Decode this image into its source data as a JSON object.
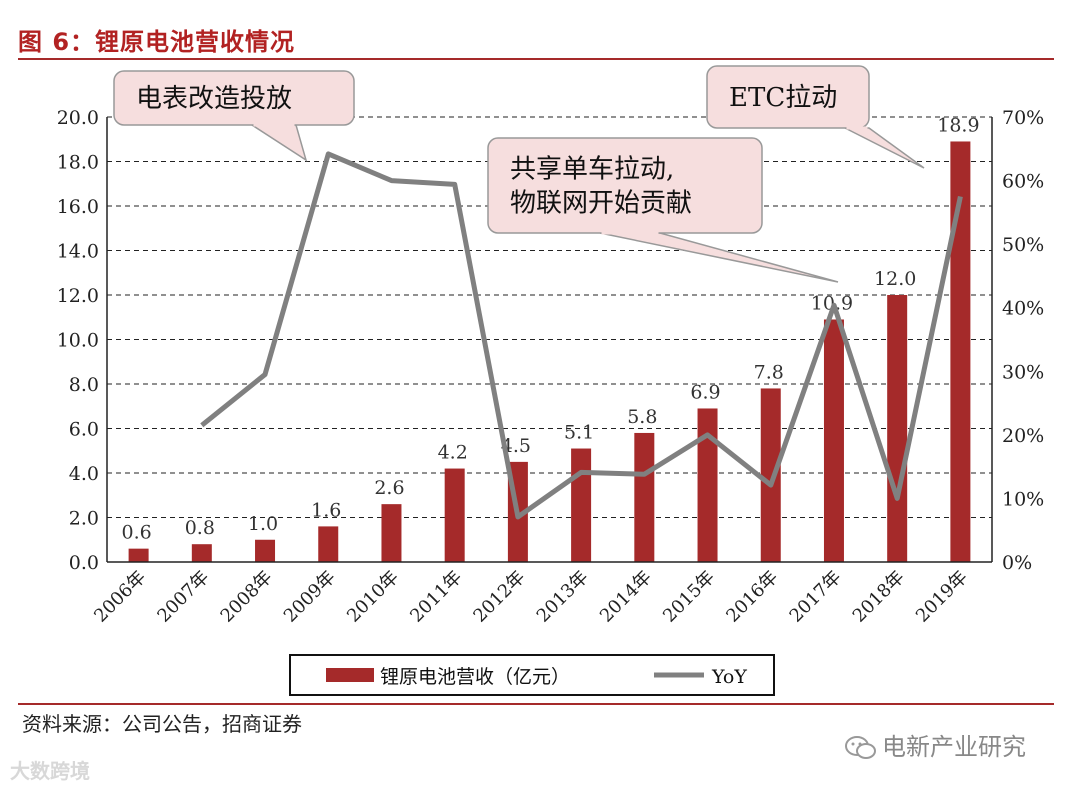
{
  "figure_title": "图 6：锂原电池营收情况",
  "source": "资料来源：公司公告，招商证券",
  "watermark_right": "电新产业研究",
  "watermark_left": "大数跨境",
  "colors": {
    "bar": "#a52a2a",
    "line": "#808080",
    "accent": "#b22222",
    "callout_fill": "#f6dede"
  },
  "chart_data": {
    "type": "bar",
    "categories": [
      "2006年",
      "2007年",
      "2008年",
      "2009年",
      "2010年",
      "2011年",
      "2012年",
      "2013年",
      "2014年",
      "2015年",
      "2016年",
      "2017年",
      "2018年",
      "2019年"
    ],
    "series": [
      {
        "name": "锂原电池营收（亿元）",
        "type": "bar",
        "axis": "left",
        "values": [
          0.6,
          0.8,
          1.0,
          1.6,
          2.6,
          4.2,
          4.5,
          5.1,
          5.8,
          6.9,
          7.8,
          10.9,
          12.0,
          18.9
        ],
        "labels": [
          "0.6",
          "0.8",
          "1.0",
          "1.6",
          "2.6",
          "4.2",
          "4.5",
          "5.1",
          "5.8",
          "6.9",
          "7.8",
          "10.9",
          "12.0",
          "18.9"
        ]
      },
      {
        "name": "YoY",
        "type": "line",
        "axis": "right",
        "values": [
          null,
          0.215,
          0.295,
          0.642,
          0.6,
          0.594,
          0.071,
          0.141,
          0.138,
          0.2,
          0.121,
          0.404,
          0.1,
          0.575
        ]
      }
    ],
    "y_left": {
      "min": 0,
      "max": 20,
      "ticks": [
        "0.0",
        "2.0",
        "4.0",
        "6.0",
        "8.0",
        "10.0",
        "12.0",
        "14.0",
        "16.0",
        "18.0",
        "20.0"
      ]
    },
    "y_right": {
      "min": 0,
      "max": 0.7,
      "ticks": [
        "0%",
        "10%",
        "20%",
        "30%",
        "40%",
        "50%",
        "60%",
        "70%"
      ]
    },
    "grid": "horizontal-dashed",
    "legend_position": "bottom",
    "annotations": [
      {
        "text": [
          "电表改造投放"
        ]
      },
      {
        "text": [
          "共享单车拉动,",
          "物联网开始贡献"
        ]
      },
      {
        "text": [
          "ETC拉动"
        ]
      }
    ]
  }
}
